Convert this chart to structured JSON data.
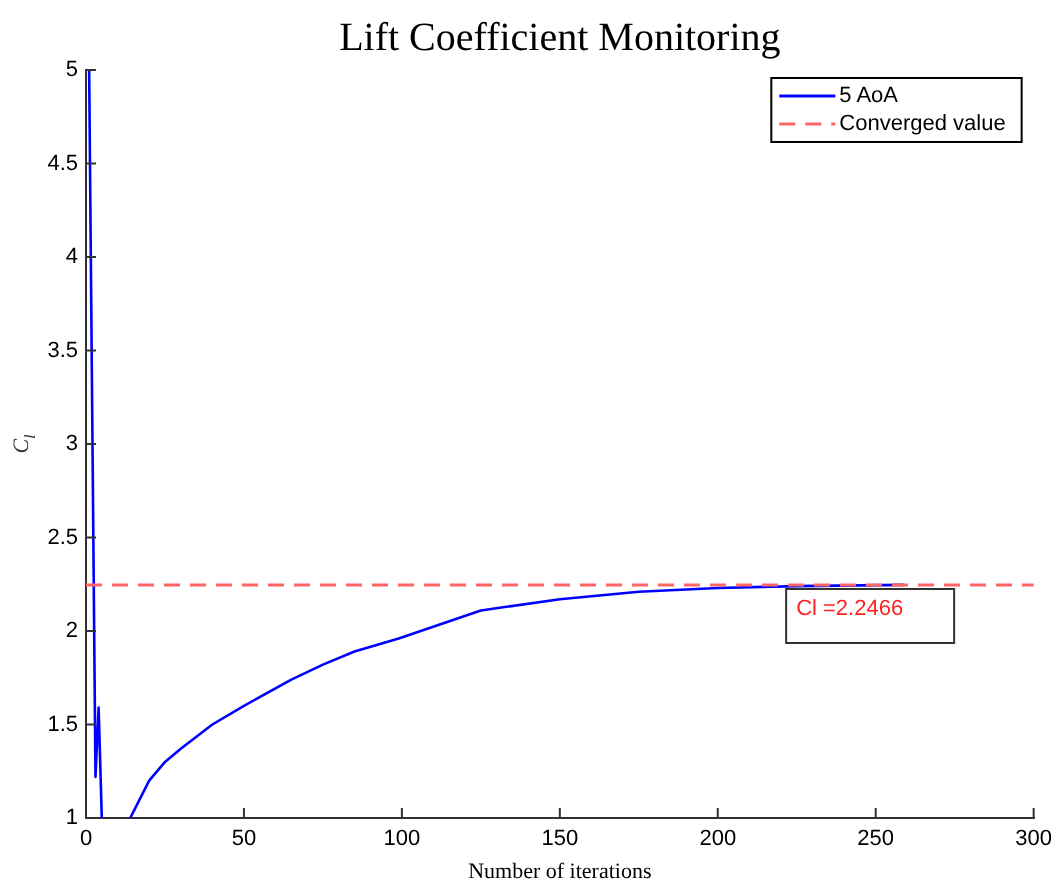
{
  "chart_data": {
    "type": "line",
    "title": "Lift Coefficient Monitoring",
    "xlabel": "Number of iterations",
    "ylabel": "C$_{l}$",
    "x": [
      1,
      3,
      4,
      5,
      9,
      14,
      20,
      25,
      30,
      40,
      50,
      65,
      75,
      85,
      99,
      125,
      150,
      175,
      200,
      225,
      259
    ],
    "series": [
      {
        "name": "5 AoA",
        "color": "#0000ff",
        "values": [
          5,
          1.22,
          1.59,
          1.0,
          null,
          1.0,
          1.2,
          1.3,
          1.37,
          1.5,
          1.6,
          1.74,
          1.82,
          1.89,
          1.96,
          2.11,
          2.17,
          2.21,
          2.23,
          2.24,
          2.2466
        ]
      }
    ],
    "ref_lines": [
      {
        "axis": "y",
        "value": 2.2466,
        "label": "Converged value",
        "color": "#ff6666",
        "line_style": "dashed"
      }
    ],
    "annotations": [
      {
        "text": "Cl =2.2466",
        "x": 259,
        "y": 2.2466
      }
    ],
    "xlim": [
      0,
      300
    ],
    "xticks": [
      0,
      50,
      100,
      150,
      200,
      250,
      300
    ],
    "ylim": [
      1,
      5
    ],
    "yticks": [
      1,
      1.5,
      2,
      2.5,
      3,
      3.5,
      4,
      4.5,
      5
    ],
    "grid": false,
    "legend": "top right",
    "marker": "none",
    "line_style": "solid"
  }
}
